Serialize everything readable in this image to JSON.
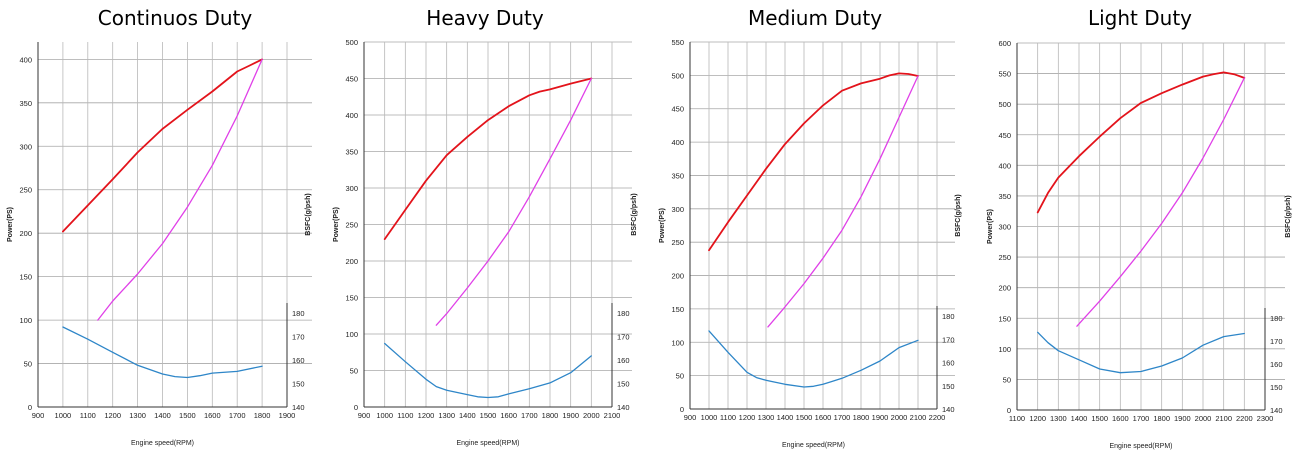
{
  "chart_data": [
    {
      "type": "line",
      "title": "Continuos Duty",
      "xlabel": "Engine speed(RPM)",
      "ylabel": "Power(PS)",
      "y2label": "BSFC(g/psh)",
      "xlim": [
        900,
        1900
      ],
      "xticks": [
        900,
        1000,
        1100,
        1200,
        1300,
        1400,
        1500,
        1600,
        1700,
        1800,
        1900
      ],
      "ylim": [
        0,
        420
      ],
      "yticks": [
        0,
        50,
        100,
        150,
        200,
        250,
        300,
        350,
        400
      ],
      "y2lim": [
        140,
        180
      ],
      "y2ticks": [
        140,
        150,
        160,
        170,
        180
      ],
      "grid": true,
      "colors": {
        "power": "#e3131b",
        "torque": "#e040e8",
        "bsfc": "#2e86c8"
      },
      "series": [
        {
          "key": "power",
          "x": [
            1000,
            1100,
            1200,
            1300,
            1400,
            1500,
            1600,
            1700,
            1750,
            1800
          ],
          "y": [
            202,
            232,
            262,
            293,
            320,
            342,
            363,
            386,
            393,
            400
          ]
        },
        {
          "key": "torque",
          "x": [
            1140,
            1200,
            1300,
            1400,
            1500,
            1600,
            1700,
            1800
          ],
          "y": [
            100,
            122,
            153,
            188,
            230,
            278,
            335,
            400
          ]
        },
        {
          "key": "bsfc",
          "x": [
            1000,
            1100,
            1200,
            1300,
            1400,
            1450,
            1500,
            1550,
            1600,
            1700,
            1800
          ],
          "y": [
            92,
            78,
            63,
            48,
            38,
            35,
            34,
            36,
            39,
            41,
            47
          ]
        }
      ]
    },
    {
      "type": "line",
      "title": "Heavy Duty",
      "xlabel": "Engine speed(RPM)",
      "ylabel": "Power(PS)",
      "y2label": "BSFC(g/psh)",
      "xlim": [
        900,
        2100
      ],
      "xticks": [
        900,
        1000,
        1100,
        1200,
        1300,
        1400,
        1500,
        1600,
        1700,
        1800,
        1900,
        2000,
        2100
      ],
      "ylim": [
        0,
        500
      ],
      "yticks": [
        0,
        50,
        100,
        150,
        200,
        250,
        300,
        350,
        400,
        450,
        500
      ],
      "y2lim": [
        140,
        180
      ],
      "y2ticks": [
        140,
        150,
        160,
        170,
        180
      ],
      "grid": true,
      "colors": {
        "power": "#e3131b",
        "torque": "#e040e8",
        "bsfc": "#2e86c8"
      },
      "series": [
        {
          "key": "power",
          "x": [
            1000,
            1100,
            1200,
            1300,
            1400,
            1500,
            1600,
            1700,
            1750,
            1800,
            1900,
            2000
          ],
          "y": [
            230,
            270,
            310,
            345,
            370,
            393,
            412,
            427,
            432,
            435,
            443,
            450
          ]
        },
        {
          "key": "torque",
          "x": [
            1250,
            1300,
            1400,
            1500,
            1600,
            1700,
            1800,
            1900,
            2000
          ],
          "y": [
            112,
            128,
            163,
            200,
            240,
            288,
            340,
            393,
            450
          ]
        },
        {
          "key": "bsfc",
          "x": [
            1000,
            1100,
            1200,
            1250,
            1300,
            1400,
            1450,
            1500,
            1550,
            1600,
            1700,
            1800,
            1900,
            2000
          ],
          "y": [
            87,
            62,
            38,
            28,
            23,
            17,
            14,
            13,
            14,
            18,
            25,
            33,
            47,
            70
          ]
        }
      ]
    },
    {
      "type": "line",
      "title": "Medium Duty",
      "xlabel": "Engine speed(RPM)",
      "ylabel": "Power(PS)",
      "y2label": "BSFC(g/psh)",
      "xlim": [
        900,
        2200
      ],
      "xticks": [
        900,
        1000,
        1100,
        1200,
        1300,
        1400,
        1500,
        1600,
        1700,
        1800,
        1900,
        2000,
        2100,
        2200
      ],
      "ylim": [
        0,
        550
      ],
      "yticks": [
        0,
        50,
        100,
        150,
        200,
        250,
        300,
        350,
        400,
        450,
        500,
        550
      ],
      "y2lim": [
        140,
        180
      ],
      "y2ticks": [
        140,
        150,
        160,
        170,
        180
      ],
      "grid": true,
      "colors": {
        "power": "#e3131b",
        "torque": "#e040e8",
        "bsfc": "#2e86c8"
      },
      "series": [
        {
          "key": "power",
          "x": [
            1000,
            1100,
            1200,
            1300,
            1400,
            1500,
            1600,
            1700,
            1800,
            1900,
            1950,
            2000,
            2050,
            2100
          ],
          "y": [
            238,
            280,
            320,
            360,
            397,
            428,
            455,
            477,
            488,
            495,
            500,
            503,
            502,
            499
          ]
        },
        {
          "key": "torque",
          "x": [
            1310,
            1400,
            1500,
            1600,
            1700,
            1800,
            1900,
            2000,
            2100
          ],
          "y": [
            123,
            153,
            188,
            226,
            268,
            318,
            375,
            437,
            499
          ]
        },
        {
          "key": "bsfc",
          "x": [
            1000,
            1100,
            1200,
            1250,
            1300,
            1400,
            1500,
            1550,
            1600,
            1700,
            1800,
            1900,
            2000,
            2100
          ],
          "y": [
            117,
            85,
            55,
            47,
            43,
            37,
            33,
            34,
            37,
            46,
            58,
            72,
            92,
            103
          ]
        }
      ]
    },
    {
      "type": "line",
      "title": "Light Duty",
      "xlabel": "Engine speed(RPM)",
      "ylabel": "Power(PS)",
      "y2label": "BSFC(g/psh)",
      "xlim": [
        1100,
        2300
      ],
      "xticks": [
        1100,
        1200,
        1300,
        1400,
        1500,
        1600,
        1700,
        1800,
        1900,
        2000,
        2100,
        2200,
        2300
      ],
      "ylim": [
        0,
        600
      ],
      "yticks": [
        0,
        50,
        100,
        150,
        200,
        250,
        300,
        350,
        400,
        450,
        500,
        550,
        600
      ],
      "y2lim": [
        140,
        180
      ],
      "y2ticks": [
        140,
        150,
        160,
        170,
        180
      ],
      "grid": true,
      "colors": {
        "power": "#e3131b",
        "torque": "#e040e8",
        "bsfc": "#2e86c8"
      },
      "series": [
        {
          "key": "power",
          "x": [
            1200,
            1250,
            1300,
            1400,
            1500,
            1600,
            1700,
            1800,
            1900,
            2000,
            2050,
            2100,
            2150,
            2200
          ],
          "y": [
            323,
            355,
            380,
            415,
            447,
            477,
            502,
            518,
            532,
            545,
            549,
            552,
            549,
            543
          ]
        },
        {
          "key": "torque",
          "x": [
            1390,
            1500,
            1600,
            1700,
            1800,
            1900,
            2000,
            2100,
            2200
          ],
          "y": [
            137,
            178,
            218,
            260,
            305,
            355,
            412,
            475,
            543
          ]
        },
        {
          "key": "bsfc",
          "x": [
            1200,
            1250,
            1300,
            1400,
            1500,
            1600,
            1700,
            1800,
            1900,
            2000,
            2100,
            2200
          ],
          "y": [
            127,
            110,
            97,
            82,
            67,
            61,
            63,
            72,
            85,
            106,
            120,
            125
          ]
        }
      ]
    }
  ]
}
